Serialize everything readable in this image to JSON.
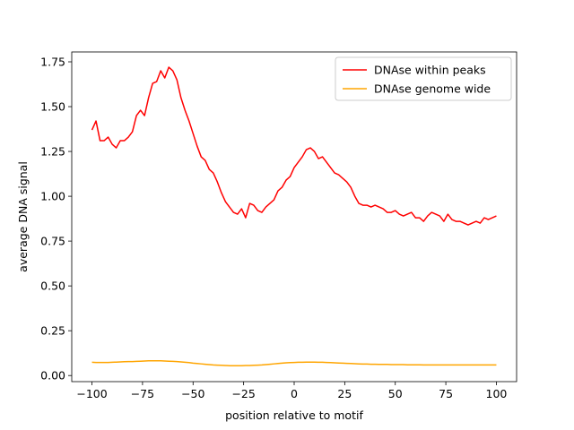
{
  "chart_data": {
    "type": "line",
    "xlabel": "position relative to motif",
    "ylabel": "average DNA signal",
    "x": [
      -100,
      -98,
      -96,
      -94,
      -92,
      -90,
      -88,
      -86,
      -84,
      -82,
      -80,
      -78,
      -76,
      -74,
      -72,
      -70,
      -68,
      -66,
      -64,
      -62,
      -60,
      -58,
      -56,
      -54,
      -52,
      -50,
      -48,
      -46,
      -44,
      -42,
      -40,
      -38,
      -36,
      -34,
      -32,
      -30,
      -28,
      -26,
      -24,
      -22,
      -20,
      -18,
      -16,
      -14,
      -12,
      -10,
      -8,
      -6,
      -4,
      -2,
      0,
      2,
      4,
      6,
      8,
      10,
      12,
      14,
      16,
      18,
      20,
      22,
      24,
      26,
      28,
      30,
      32,
      34,
      36,
      38,
      40,
      42,
      44,
      46,
      48,
      50,
      52,
      54,
      56,
      58,
      60,
      62,
      64,
      66,
      68,
      70,
      72,
      74,
      76,
      78,
      80,
      82,
      84,
      86,
      88,
      90,
      92,
      94,
      96,
      98,
      100
    ],
    "series": [
      {
        "name": "DNAse within peaks",
        "color": "#ff0000",
        "values": [
          1.37,
          1.42,
          1.31,
          1.31,
          1.33,
          1.29,
          1.27,
          1.31,
          1.31,
          1.33,
          1.36,
          1.45,
          1.48,
          1.45,
          1.55,
          1.63,
          1.64,
          1.7,
          1.66,
          1.72,
          1.7,
          1.65,
          1.55,
          1.48,
          1.42,
          1.35,
          1.28,
          1.22,
          1.2,
          1.15,
          1.13,
          1.08,
          1.02,
          0.97,
          0.94,
          0.91,
          0.9,
          0.93,
          0.88,
          0.96,
          0.95,
          0.92,
          0.91,
          0.94,
          0.96,
          0.98,
          1.03,
          1.05,
          1.09,
          1.11,
          1.16,
          1.19,
          1.22,
          1.26,
          1.27,
          1.25,
          1.21,
          1.22,
          1.19,
          1.16,
          1.13,
          1.12,
          1.1,
          1.08,
          1.05,
          1.0,
          0.96,
          0.95,
          0.95,
          0.94,
          0.95,
          0.94,
          0.93,
          0.91,
          0.91,
          0.92,
          0.9,
          0.89,
          0.9,
          0.91,
          0.88,
          0.88,
          0.86,
          0.89,
          0.91,
          0.9,
          0.89,
          0.86,
          0.9,
          0.87,
          0.86,
          0.86,
          0.85,
          0.84,
          0.85,
          0.86,
          0.85,
          0.88,
          0.87,
          0.88,
          0.89
        ]
      },
      {
        "name": "DNAse genome wide",
        "color": "#ffa500",
        "values": [
          0.074,
          0.073,
          0.073,
          0.073,
          0.073,
          0.074,
          0.075,
          0.076,
          0.077,
          0.078,
          0.078,
          0.079,
          0.08,
          0.081,
          0.082,
          0.082,
          0.082,
          0.082,
          0.081,
          0.08,
          0.079,
          0.078,
          0.076,
          0.074,
          0.072,
          0.069,
          0.067,
          0.065,
          0.063,
          0.061,
          0.059,
          0.058,
          0.057,
          0.056,
          0.055,
          0.055,
          0.055,
          0.055,
          0.056,
          0.056,
          0.057,
          0.058,
          0.059,
          0.061,
          0.063,
          0.065,
          0.067,
          0.069,
          0.071,
          0.072,
          0.073,
          0.074,
          0.074,
          0.075,
          0.075,
          0.075,
          0.074,
          0.074,
          0.073,
          0.072,
          0.071,
          0.07,
          0.069,
          0.068,
          0.067,
          0.066,
          0.065,
          0.064,
          0.064,
          0.063,
          0.063,
          0.062,
          0.062,
          0.062,
          0.061,
          0.061,
          0.061,
          0.061,
          0.06,
          0.06,
          0.06,
          0.06,
          0.059,
          0.059,
          0.059,
          0.059,
          0.059,
          0.059,
          0.059,
          0.059,
          0.059,
          0.059,
          0.059,
          0.059,
          0.059,
          0.059,
          0.059,
          0.059,
          0.059,
          0.059,
          0.059
        ]
      }
    ],
    "xlim": [
      -110,
      110
    ],
    "ylim": [
      -0.034,
      1.805
    ],
    "xticks": [
      {
        "value": -100,
        "label": "−100"
      },
      {
        "value": -75,
        "label": "−75"
      },
      {
        "value": -50,
        "label": "−50"
      },
      {
        "value": -25,
        "label": "−25"
      },
      0,
      25,
      50,
      75,
      100
    ],
    "yticks": [
      {
        "value": 0,
        "label": "0.00"
      },
      {
        "value": 0.25,
        "label": "0.25"
      },
      {
        "value": 0.5,
        "label": "0.50"
      },
      {
        "value": 0.75,
        "label": "0.75"
      },
      {
        "value": 1,
        "label": "1.00"
      },
      {
        "value": 1.25,
        "label": "1.25"
      },
      {
        "value": 1.5,
        "label": "1.50"
      },
      {
        "value": 1.75,
        "label": "1.75"
      }
    ],
    "legend": "upper right"
  }
}
